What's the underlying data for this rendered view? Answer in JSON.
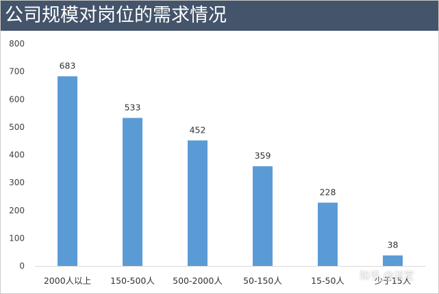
{
  "title": "公司规模对岗位的需求情况",
  "watermark": "知乎 @淡定",
  "colors": {
    "title_bg": "#44546a",
    "bar": "#5b9bd5",
    "axis": "#d9d9d9"
  },
  "chart_data": {
    "type": "bar",
    "title": "公司规模对岗位的需求情况",
    "categories": [
      "2000人以上",
      "150-500人",
      "500-2000人",
      "50-150人",
      "15-50人",
      "少于15人"
    ],
    "values": [
      683,
      533,
      452,
      359,
      228,
      38
    ],
    "ylim": [
      0,
      800
    ],
    "yticks": [
      0,
      100,
      200,
      300,
      400,
      500,
      600,
      700,
      800
    ],
    "xlabel": "",
    "ylabel": "",
    "grid": false,
    "legend": "none",
    "data_labels": true
  }
}
